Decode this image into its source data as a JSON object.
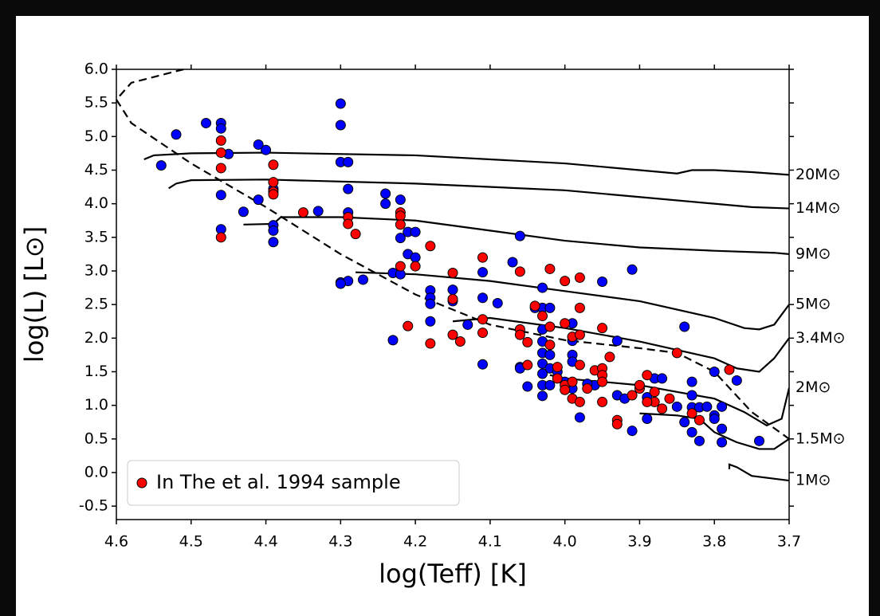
{
  "chart_data": {
    "type": "scatter",
    "xlabel": "log(Teff) [K]",
    "ylabel": "log(L) [L⊙]",
    "xlim": [
      4.6,
      3.7
    ],
    "ylim": [
      -0.7,
      6.0
    ],
    "xticks": [
      4.6,
      4.5,
      4.4,
      4.3,
      4.2,
      4.1,
      {
        "value": 4,
        "label": "4.0"
      },
      3.9,
      3.8,
      3.7
    ],
    "yticks": [
      {
        "value": 6,
        "label": "6.0"
      },
      5.5,
      {
        "value": 5,
        "label": "5.0"
      },
      4.5,
      {
        "value": 4,
        "label": "4.0"
      },
      3.5,
      {
        "value": 3,
        "label": "3.0"
      },
      2.5,
      {
        "value": 2,
        "label": "2.0"
      },
      1.5,
      {
        "value": 1,
        "label": "1.0"
      },
      0.5,
      {
        "value": 0,
        "label": "0.0"
      },
      -0.5
    ],
    "legend": "lower left",
    "series": [
      {
        "color": "#0000ff",
        "x": [
          4.54,
          4.52,
          4.48,
          4.46,
          4.46,
          4.45,
          4.41,
          4.4,
          4.46,
          4.46,
          4.43,
          4.41,
          4.39,
          4.39,
          4.39,
          4.39,
          4.33,
          4.3,
          4.3,
          4.3,
          4.29,
          4.29,
          4.29,
          4.3,
          4.29,
          4.3,
          4.27,
          4.24,
          4.24,
          4.23,
          4.23,
          4.22,
          4.22,
          4.21,
          4.2,
          4.21,
          4.2,
          4.22,
          4.18,
          4.18,
          4.18,
          4.18,
          4.15,
          4.15,
          4.13,
          4.11,
          4.11,
          4.09,
          4.11,
          4.07,
          4.06,
          4.06,
          4.06,
          4.04,
          4.03,
          4.03,
          4.02,
          4.03,
          4.03,
          4.03,
          4.02,
          4.03,
          4.02,
          4.03,
          4.03,
          4.02,
          4.03,
          4.01,
          4.0,
          3.99,
          3.99,
          3.99,
          3.99,
          3.99,
          3.98,
          3.95,
          3.93,
          3.93,
          3.92,
          3.91,
          3.91,
          3.89,
          3.88,
          3.89,
          3.87,
          3.84,
          3.85,
          3.84,
          3.83,
          3.83,
          3.83,
          3.83,
          3.82,
          3.82,
          3.81,
          3.8,
          3.8,
          3.79,
          3.79,
          3.79,
          3.8,
          3.77,
          3.74,
          3.96,
          3.97,
          4.05
        ],
        "y": [
          4.57,
          5.03,
          5.2,
          5.2,
          5.12,
          4.74,
          4.88,
          4.8,
          4.13,
          3.62,
          3.88,
          4.06,
          3.68,
          3.6,
          3.43,
          4.22,
          3.89,
          5.49,
          5.17,
          4.62,
          4.62,
          4.22,
          3.87,
          2.83,
          2.85,
          2.81,
          2.87,
          4.15,
          4.0,
          2.97,
          1.97,
          4.06,
          3.49,
          3.58,
          3.58,
          3.25,
          3.2,
          2.95,
          2.71,
          2.6,
          2.51,
          2.25,
          2.72,
          2.55,
          2.2,
          2.98,
          2.6,
          2.52,
          1.61,
          3.13,
          3.52,
          1.57,
          1.55,
          2.45,
          2.75,
          2.45,
          2.45,
          2.13,
          1.95,
          1.78,
          1.75,
          1.62,
          1.55,
          1.47,
          1.3,
          1.3,
          1.14,
          1.5,
          1.35,
          2.22,
          1.96,
          1.75,
          1.65,
          1.25,
          0.82,
          2.84,
          1.96,
          1.15,
          1.1,
          3.02,
          0.62,
          1.12,
          1.4,
          0.8,
          1.4,
          2.17,
          0.98,
          0.75,
          1.35,
          1.15,
          0.97,
          0.6,
          0.47,
          0.97,
          0.98,
          0.85,
          0.8,
          0.98,
          0.65,
          0.45,
          1.5,
          1.37,
          0.47,
          1.3,
          1.32,
          1.28
        ]
      },
      {
        "name": "In The et al. 1994 sample",
        "color": "#ff0000",
        "x": [
          4.46,
          4.46,
          4.46,
          4.46,
          4.39,
          4.39,
          4.39,
          4.39,
          4.35,
          4.29,
          4.29,
          4.28,
          4.22,
          4.22,
          4.22,
          4.22,
          4.21,
          4.2,
          4.18,
          4.18,
          4.15,
          4.15,
          4.15,
          4.14,
          4.11,
          4.11,
          4.11,
          4.06,
          4.06,
          4.06,
          4.05,
          4.05,
          4.04,
          4.03,
          4.02,
          4.02,
          4.02,
          4.01,
          4.01,
          4.0,
          4.0,
          4.0,
          3.99,
          3.99,
          3.99,
          3.98,
          3.98,
          3.98,
          3.98,
          3.97,
          3.96,
          3.95,
          3.95,
          3.95,
          3.95,
          3.95,
          3.94,
          3.93,
          3.93,
          3.91,
          3.9,
          3.9,
          3.89,
          3.88,
          3.88,
          3.87,
          3.86,
          3.85,
          3.83,
          3.82,
          3.78,
          4.0,
          3.98,
          3.89
        ],
        "y": [
          4.94,
          4.76,
          4.53,
          3.5,
          4.58,
          4.32,
          4.18,
          4.14,
          3.87,
          3.8,
          3.7,
          3.55,
          3.87,
          3.82,
          3.69,
          3.07,
          2.18,
          3.07,
          3.37,
          1.92,
          2.97,
          2.58,
          2.05,
          1.95,
          3.2,
          2.28,
          2.08,
          2.99,
          2.13,
          2.05,
          1.94,
          1.6,
          2.48,
          2.33,
          3.03,
          2.17,
          1.9,
          1.57,
          1.4,
          2.85,
          2.22,
          1.3,
          2.02,
          1.35,
          1.1,
          2.9,
          2.45,
          2.05,
          1.6,
          1.25,
          1.52,
          2.15,
          1.55,
          1.45,
          1.35,
          1.05,
          1.72,
          0.78,
          0.72,
          1.15,
          1.25,
          1.3,
          1.45,
          1.2,
          1.05,
          0.95,
          1.1,
          1.78,
          0.88,
          0.78,
          1.53,
          1.23,
          1.05,
          1.05
        ]
      }
    ],
    "lines": [
      {
        "style": "dashed",
        "x": [
          4.51,
          4.58,
          4.6,
          4.58,
          4.5,
          4.4,
          4.3,
          4.2,
          4.1,
          4.0,
          3.9,
          3.85,
          3.8,
          3.75,
          3.7
        ],
        "y": [
          6.0,
          5.8,
          5.55,
          5.2,
          4.6,
          3.95,
          3.25,
          2.65,
          2.2,
          1.97,
          1.85,
          1.78,
          1.5,
          0.9,
          0.5
        ]
      },
      {
        "name": "20M⊙",
        "style": "solid",
        "x": [
          4.563,
          4.55,
          4.5,
          4.4,
          4.2,
          4.0,
          3.9,
          3.85,
          3.83,
          3.8,
          3.75,
          3.7
        ],
        "y": [
          4.66,
          4.72,
          4.75,
          4.76,
          4.72,
          4.6,
          4.5,
          4.45,
          4.5,
          4.5,
          4.47,
          4.43
        ]
      },
      {
        "name": "14M⊙",
        "style": "solid",
        "x": [
          4.53,
          4.52,
          4.5,
          4.4,
          4.2,
          4.0,
          3.9,
          3.8,
          3.75,
          3.7
        ],
        "y": [
          4.23,
          4.3,
          4.35,
          4.36,
          4.3,
          4.2,
          4.1,
          4.0,
          3.95,
          3.93
        ]
      },
      {
        "name": "9M⊙",
        "style": "solid",
        "x": [
          4.43,
          4.39,
          4.38,
          4.3,
          4.2,
          4.1,
          4.0,
          3.9,
          3.8,
          3.72,
          3.7
        ],
        "y": [
          3.69,
          3.7,
          3.8,
          3.8,
          3.75,
          3.6,
          3.45,
          3.35,
          3.3,
          3.27,
          3.25
        ]
      },
      {
        "name": "5M⊙",
        "style": "solid",
        "x": [
          4.28,
          4.2,
          4.1,
          4.0,
          3.9,
          3.8,
          3.76,
          3.74,
          3.72,
          3.7
        ],
        "y": [
          2.98,
          2.95,
          2.85,
          2.7,
          2.55,
          2.3,
          2.15,
          2.13,
          2.2,
          2.5
        ]
      },
      {
        "name": "3.4M⊙",
        "style": "solid",
        "x": [
          4.15,
          4.1,
          4.0,
          3.9,
          3.8,
          3.77,
          3.74,
          3.72,
          3.7
        ],
        "y": [
          2.25,
          2.3,
          2.15,
          1.95,
          1.7,
          1.55,
          1.5,
          1.7,
          2.0
        ]
      },
      {
        "name": "2M⊙",
        "style": "solid",
        "x": [
          4.02,
          4.0,
          3.9,
          3.85,
          3.8,
          3.76,
          3.73,
          3.71,
          3.7
        ],
        "y": [
          1.45,
          1.4,
          1.3,
          1.2,
          1.1,
          0.9,
          0.7,
          0.8,
          1.26
        ]
      },
      {
        "name": "1.5M⊙",
        "style": "solid",
        "x": [
          3.9,
          3.85,
          3.82,
          3.8,
          3.77,
          3.74,
          3.72,
          3.7
        ],
        "y": [
          0.88,
          0.85,
          0.8,
          0.6,
          0.45,
          0.35,
          0.35,
          0.5
        ]
      },
      {
        "name": "1M⊙",
        "style": "solid",
        "x": [
          3.78,
          3.78,
          3.77,
          3.75,
          3.7
        ],
        "y": [
          0.05,
          0.12,
          0.08,
          -0.05,
          -0.12
        ]
      }
    ]
  }
}
